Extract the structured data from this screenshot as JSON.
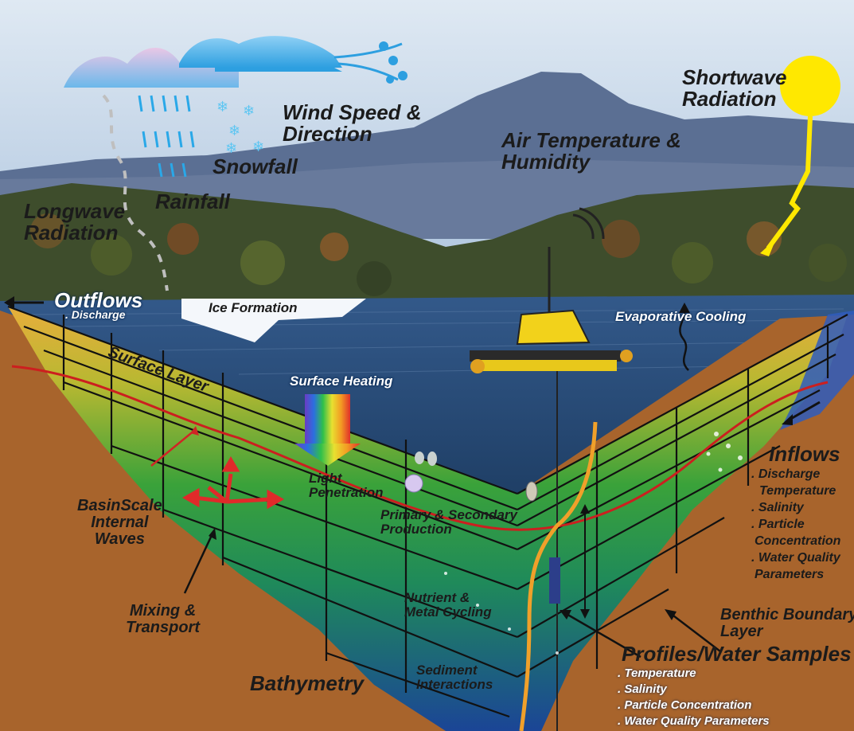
{
  "labels": {
    "shortwave_radiation": [
      "Shortwave",
      "Radiation"
    ],
    "wind_speed_direction": [
      "Wind Speed &",
      "Direction"
    ],
    "air_temperature_humidity": [
      "Air Temperature &",
      "Humidity"
    ],
    "snowfall": "Snowfall",
    "rainfall": "Rainfall",
    "longwave_radiation": [
      "Longwave",
      "Radiation"
    ],
    "outflows": "Outflows",
    "outflows_discharge": ". Discharge",
    "ice_formation": "Ice Formation",
    "evaporative_cooling": "Evaporative Cooling",
    "surface_layer": "Surface Layer",
    "surface_heating": "Surface Heating",
    "light_penetration": [
      "Light",
      "Penetration"
    ],
    "primary_secondary_production": [
      "Primary & Secondary",
      "Production"
    ],
    "basin_scale_internal_waves": [
      "BasinScale",
      "Internal",
      "Waves"
    ],
    "nutrient_metal_cycling": [
      "Nutrient &",
      "Metal Cycling"
    ],
    "mixing_transport": [
      "Mixing &",
      "Transport"
    ],
    "benthic_boundary_layer": [
      "Benthic Boundary",
      "Layer"
    ],
    "bathymetry": "Bathymetry",
    "sediment_interactions": [
      "Sediment",
      "Interactions"
    ],
    "inflows": "Inflows",
    "inflows_items": [
      ". Discharge",
      "Temperature",
      ". Salinity",
      ". Particle",
      "Concentration",
      ". Water Quality",
      "Parameters"
    ],
    "profiles_water_samples": "Profiles/Water Samples",
    "profiles_items": [
      ". Temperature",
      ". Salinity",
      ". Particle  Concentration",
      ". Water Quality Parameters"
    ]
  },
  "colors": {
    "sky": "#b9cfe4",
    "mountain": "#5f7396",
    "forest": "#3a4a2a",
    "lake_surface": "#2a4d7a",
    "sediment": "#a8652b",
    "water_top": "#e0a83a",
    "water_mid": "#2f9a37",
    "water_bottom": "#1d4f9a",
    "sun": "#ffe800",
    "thermocline": "#cc1f1f",
    "buoy": "#f2d21b"
  }
}
